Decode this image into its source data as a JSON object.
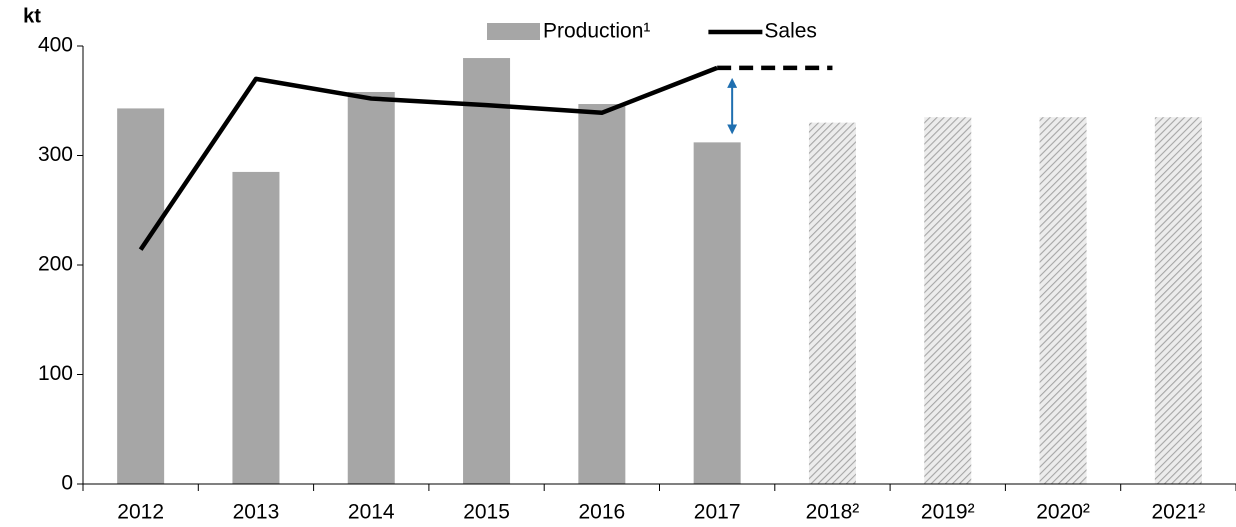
{
  "chart_data": {
    "type": "bar_line",
    "y_label": "kt",
    "categories": [
      "2012",
      "2013",
      "2014",
      "2015",
      "2016",
      "2017",
      "2018²",
      "2019²",
      "2020²",
      "2021²"
    ],
    "series": [
      {
        "name": "Production¹",
        "type": "bar",
        "color": "#a6a6a6",
        "values": [
          343,
          285,
          358,
          389,
          347,
          312,
          330,
          335,
          335,
          335
        ]
      },
      {
        "name": "Sales",
        "type": "line",
        "color": "#000000",
        "values": [
          214,
          370,
          352,
          346,
          339,
          380,
          380,
          null,
          null,
          null
        ]
      }
    ],
    "projection_start": 6,
    "ylim": [
      0,
      400
    ],
    "yticks": [
      0,
      100,
      200,
      300,
      400
    ],
    "grid": false
  }
}
